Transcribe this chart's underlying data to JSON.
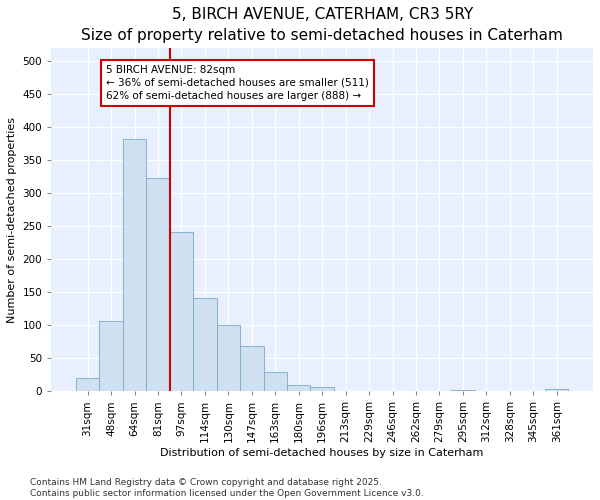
{
  "title": "5, BIRCH AVENUE, CATERHAM, CR3 5RY",
  "subtitle": "Size of property relative to semi-detached houses in Caterham",
  "xlabel": "Distribution of semi-detached houses by size in Caterham",
  "ylabel": "Number of semi-detached properties",
  "footer": "Contains HM Land Registry data © Crown copyright and database right 2025.\nContains public sector information licensed under the Open Government Licence v3.0.",
  "categories": [
    "31sqm",
    "48sqm",
    "64sqm",
    "81sqm",
    "97sqm",
    "114sqm",
    "130sqm",
    "147sqm",
    "163sqm",
    "180sqm",
    "196sqm",
    "213sqm",
    "229sqm",
    "246sqm",
    "262sqm",
    "279sqm",
    "295sqm",
    "312sqm",
    "328sqm",
    "345sqm",
    "361sqm"
  ],
  "values": [
    20,
    107,
    382,
    323,
    241,
    142,
    101,
    68,
    29,
    10,
    7,
    0,
    0,
    0,
    0,
    0,
    2,
    0,
    0,
    0,
    3
  ],
  "bar_color": "#cfe0f0",
  "bar_edge_color": "#7aaaca",
  "vline_index": 3,
  "vline_color": "#cc0000",
  "annotation_text": "5 BIRCH AVENUE: 82sqm\n← 36% of semi-detached houses are smaller (511)\n62% of semi-detached houses are larger (888) →",
  "annotation_box_facecolor": "white",
  "annotation_box_edgecolor": "#cc0000",
  "ylim": [
    0,
    520
  ],
  "yticks": [
    0,
    50,
    100,
    150,
    200,
    250,
    300,
    350,
    400,
    450,
    500
  ],
  "fig_bg_color": "#ffffff",
  "plot_bg_color": "#e8f0ff",
  "grid_color": "#ffffff",
  "title_fontsize": 11,
  "subtitle_fontsize": 9,
  "axis_label_fontsize": 8,
  "tick_fontsize": 7.5,
  "footer_fontsize": 6.5,
  "annotation_fontsize": 7.5
}
